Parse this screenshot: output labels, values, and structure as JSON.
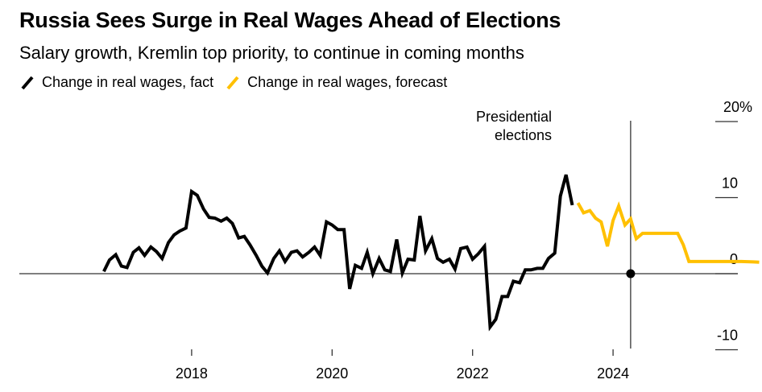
{
  "header": {
    "title": "Russia Sees Surge in Real Wages Ahead of Elections",
    "subtitle": "Salary growth, Kremlin top priority, to continue in coming months"
  },
  "chart_data": {
    "type": "line",
    "title": "Russia Sees Surge in Real Wages Ahead of Elections",
    "subtitle": "Salary growth, Kremlin top priority, to continue in coming months",
    "xlabel": "",
    "ylabel": "",
    "ylim": [
      -10,
      20
    ],
    "xlim": [
      2016.7,
      2026.6
    ],
    "y_ticks": [
      {
        "value": 20,
        "label": "20%"
      },
      {
        "value": 10,
        "label": "10"
      },
      {
        "value": 0,
        "label": "0"
      },
      {
        "value": -10,
        "label": "-10"
      }
    ],
    "x_ticks": [
      {
        "value": 2018,
        "label": "2018"
      },
      {
        "value": 2020,
        "label": "2020"
      },
      {
        "value": 2022,
        "label": "2022"
      },
      {
        "value": 2024,
        "label": "2024"
      }
    ],
    "y_axis_position": "right",
    "grid": false,
    "legend_position": "top-left",
    "series": [
      {
        "name": "Change in real wages, fact",
        "color": "#000000",
        "points": [
          [
            2016.75,
            0.3
          ],
          [
            2016.83,
            1.8
          ],
          [
            2016.92,
            2.5
          ],
          [
            2017.0,
            1.0
          ],
          [
            2017.08,
            0.8
          ],
          [
            2017.17,
            2.8
          ],
          [
            2017.25,
            3.4
          ],
          [
            2017.33,
            2.4
          ],
          [
            2017.42,
            3.5
          ],
          [
            2017.5,
            2.9
          ],
          [
            2017.58,
            2.0
          ],
          [
            2017.67,
            4.1
          ],
          [
            2017.75,
            5.1
          ],
          [
            2017.83,
            5.6
          ],
          [
            2017.92,
            6.0
          ],
          [
            2018.0,
            10.8
          ],
          [
            2018.08,
            10.3
          ],
          [
            2018.17,
            8.5
          ],
          [
            2018.25,
            7.4
          ],
          [
            2018.33,
            7.3
          ],
          [
            2018.42,
            6.9
          ],
          [
            2018.5,
            7.3
          ],
          [
            2018.58,
            6.6
          ],
          [
            2018.67,
            4.7
          ],
          [
            2018.75,
            4.9
          ],
          [
            2018.83,
            3.8
          ],
          [
            2018.92,
            2.4
          ],
          [
            2019.0,
            1.0
          ],
          [
            2019.08,
            0.1
          ],
          [
            2019.17,
            2.0
          ],
          [
            2019.25,
            3.0
          ],
          [
            2019.33,
            1.6
          ],
          [
            2019.42,
            2.8
          ],
          [
            2019.5,
            3.0
          ],
          [
            2019.58,
            2.2
          ],
          [
            2019.67,
            2.8
          ],
          [
            2019.75,
            3.5
          ],
          [
            2019.83,
            2.4
          ],
          [
            2019.92,
            6.8
          ],
          [
            2020.0,
            6.4
          ],
          [
            2020.08,
            5.8
          ],
          [
            2020.17,
            5.8
          ],
          [
            2020.25,
            -2.0
          ],
          [
            2020.33,
            1.1
          ],
          [
            2020.42,
            0.7
          ],
          [
            2020.5,
            2.8
          ],
          [
            2020.58,
            0.0
          ],
          [
            2020.67,
            2.0
          ],
          [
            2020.75,
            0.5
          ],
          [
            2020.83,
            0.3
          ],
          [
            2020.92,
            4.5
          ],
          [
            2021.0,
            0.1
          ],
          [
            2021.08,
            1.9
          ],
          [
            2021.17,
            1.8
          ],
          [
            2021.25,
            7.6
          ],
          [
            2021.33,
            3.0
          ],
          [
            2021.42,
            4.6
          ],
          [
            2021.5,
            2.0
          ],
          [
            2021.58,
            1.5
          ],
          [
            2021.67,
            1.9
          ],
          [
            2021.75,
            0.6
          ],
          [
            2021.83,
            3.3
          ],
          [
            2021.92,
            3.5
          ],
          [
            2022.0,
            1.9
          ],
          [
            2022.08,
            2.6
          ],
          [
            2022.17,
            3.6
          ],
          [
            2022.25,
            -7.0
          ],
          [
            2022.33,
            -6.0
          ],
          [
            2022.42,
            -3.0
          ],
          [
            2022.5,
            -3.0
          ],
          [
            2022.58,
            -1.0
          ],
          [
            2022.67,
            -1.2
          ],
          [
            2022.75,
            0.5
          ],
          [
            2022.83,
            0.5
          ],
          [
            2022.92,
            0.7
          ],
          [
            2023.0,
            0.7
          ],
          [
            2023.08,
            2.0
          ],
          [
            2023.17,
            2.7
          ],
          [
            2023.25,
            10.2
          ],
          [
            2023.33,
            13.0
          ],
          [
            2023.42,
            9.0
          ]
        ]
      },
      {
        "name": "Change in real wages, forecast",
        "color": "#FFC000",
        "points": [
          [
            2023.5,
            9.3
          ],
          [
            2023.58,
            8.0
          ],
          [
            2023.67,
            8.3
          ],
          [
            2023.75,
            7.3
          ],
          [
            2023.83,
            6.8
          ],
          [
            2023.92,
            3.6
          ],
          [
            2024.0,
            7.0
          ],
          [
            2024.08,
            8.9
          ],
          [
            2024.17,
            6.4
          ],
          [
            2024.25,
            7.2
          ],
          [
            2024.33,
            4.6
          ],
          [
            2024.42,
            5.3
          ],
          [
            2024.58,
            5.3
          ],
          [
            2024.75,
            5.3
          ],
          [
            2024.92,
            5.3
          ],
          [
            2025.0,
            3.8
          ],
          [
            2025.08,
            1.6
          ],
          [
            2025.5,
            1.6
          ],
          [
            2025.83,
            1.6
          ],
          [
            2026.0,
            1.55
          ],
          [
            2026.08,
            1.5
          ]
        ]
      }
    ],
    "annotations": [
      {
        "type": "vertical-line",
        "x": 2024.25,
        "label_lines": [
          "Presidential",
          "elections"
        ],
        "marker": {
          "y": 0
        }
      }
    ]
  }
}
